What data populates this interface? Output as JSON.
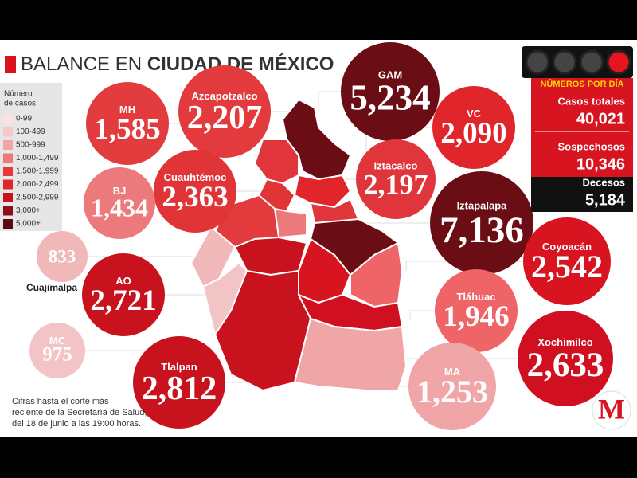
{
  "header": {
    "title_regular": "BALANCE EN",
    "title_bold": "CIUDAD DE MÉXICO"
  },
  "legend": {
    "title": [
      "Número",
      "de casos"
    ],
    "items": [
      "0-99",
      "100-499",
      "500-999",
      "1,000-1,499",
      "1,500-1,999",
      "2,000-2,499",
      "2,500-2,999",
      "3,000+",
      "5,000+"
    ]
  },
  "bubbles": [
    {
      "label": "MH",
      "value": "1,585"
    },
    {
      "label": "Azcapotzalco",
      "value": "2,207"
    },
    {
      "label": "GAM",
      "value": "5,234"
    },
    {
      "label": "VC",
      "value": "2,090"
    },
    {
      "label": "Cuauhtémoc",
      "value": "2,363"
    },
    {
      "label": "Iztacalco",
      "value": "2,197"
    },
    {
      "label": "BJ",
      "value": "1,434"
    },
    {
      "label": "Iztapalapa",
      "value": "7,136"
    },
    {
      "label": "Cuajimalpa",
      "value": "833"
    },
    {
      "label": "Coyoacán",
      "value": "2,542"
    },
    {
      "label": "AO",
      "value": "2,721"
    },
    {
      "label": "Tláhuac",
      "value": "1,946"
    },
    {
      "label": "MC",
      "value": "975"
    },
    {
      "label": "Xochimilco",
      "value": "2,633"
    },
    {
      "label": "Tlalpan",
      "value": "2,812"
    },
    {
      "label": "MA",
      "value": "1,253"
    }
  ],
  "stats": {
    "title": "NÚMEROS POR DÍA",
    "rows": [
      {
        "label": "Casos totales",
        "value": "40,021"
      },
      {
        "label": "Sospechosos",
        "value": "10,346"
      },
      {
        "label": "Decesos",
        "value": "5,184"
      }
    ]
  },
  "footnote": [
    "Cifras hasta el corte más",
    "reciente de la Secretaría de Salud,",
    "del 18 de junio a las 19:00 horas."
  ],
  "logo": "M"
}
